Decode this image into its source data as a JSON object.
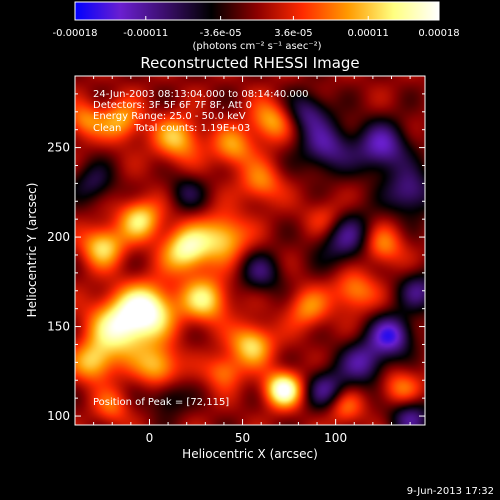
{
  "chart_data": {
    "type": "heatmap",
    "title": "Reconstructed RHESSI Image",
    "xlabel": "Heliocentric X (arcsec)",
    "ylabel": "Heliocentric Y (arcsec)",
    "xlim": [
      -40,
      148
    ],
    "ylim": [
      95,
      290
    ],
    "x_ticks": [
      0,
      50,
      100
    ],
    "y_ticks": [
      100,
      150,
      200,
      250
    ],
    "colorbar": {
      "min": -0.00018,
      "max": 0.00018,
      "ticks": [
        "-0.00018",
        "-0.00011",
        "-3.6e-05",
        "3.6e-05",
        "0.00011",
        "0.00018"
      ],
      "tick_values": [
        -0.00018,
        -0.00011,
        -3.6e-05,
        3.6e-05,
        0.00011,
        0.00018
      ],
      "unit_label": "(photons cm⁻² s⁻¹ asec⁻²)",
      "colormap": [
        "#0000ff",
        "#6a1fd0",
        "#3a0e6a",
        "#000000",
        "#8c0000",
        "#ff2a00",
        "#ff9a00",
        "#ffff80",
        "#ffffff"
      ]
    },
    "annotations": [
      "24-Jun-2003 08:13:04.000 to 08:14:40.000",
      "Detectors: 3F 5F 6F 7F 8F, Att 0",
      "Energy Range: 25.0 - 50.0 keV",
      "Clean    Total counts: 1.19E+03"
    ],
    "peak_label": "Position of Peak = [72,115]",
    "peak": [
      72,
      115
    ],
    "features": [
      {
        "x": 72,
        "y": 115,
        "v": 1.0,
        "s": 7
      },
      {
        "x": -15,
        "y": 150,
        "v": 0.9,
        "s": 12
      },
      {
        "x": 0,
        "y": 160,
        "v": 0.8,
        "s": 10
      },
      {
        "x": 20,
        "y": 193,
        "v": 0.85,
        "s": 9
      },
      {
        "x": -25,
        "y": 195,
        "v": 0.7,
        "s": 8
      },
      {
        "x": -5,
        "y": 210,
        "v": 0.7,
        "s": 8
      },
      {
        "x": 40,
        "y": 200,
        "v": 0.65,
        "s": 9
      },
      {
        "x": 55,
        "y": 140,
        "v": 0.7,
        "s": 8
      },
      {
        "x": 30,
        "y": 165,
        "v": 0.7,
        "s": 9
      },
      {
        "x": -30,
        "y": 130,
        "v": 0.6,
        "s": 8
      },
      {
        "x": 5,
        "y": 128,
        "v": 0.6,
        "s": 8
      },
      {
        "x": 15,
        "y": 255,
        "v": 0.6,
        "s": 9
      },
      {
        "x": -15,
        "y": 265,
        "v": 0.55,
        "s": 8
      },
      {
        "x": 45,
        "y": 250,
        "v": 0.5,
        "s": 8
      },
      {
        "x": 65,
        "y": 265,
        "v": 0.55,
        "s": 8
      },
      {
        "x": 60,
        "y": 230,
        "v": 0.45,
        "s": 8
      },
      {
        "x": 85,
        "y": 160,
        "v": 0.45,
        "s": 8
      },
      {
        "x": 110,
        "y": 170,
        "v": 0.5,
        "s": 8
      },
      {
        "x": 125,
        "y": 195,
        "v": 0.5,
        "s": 8
      },
      {
        "x": 95,
        "y": 210,
        "v": 0.4,
        "s": 8
      },
      {
        "x": 135,
        "y": 115,
        "v": 0.45,
        "s": 8
      },
      {
        "x": 105,
        "y": 105,
        "v": 0.4,
        "s": 7
      },
      {
        "x": -35,
        "y": 265,
        "v": 0.45,
        "s": 7
      },
      {
        "x": 40,
        "y": 125,
        "v": 0.45,
        "s": 7
      },
      {
        "x": -20,
        "y": 105,
        "v": 0.35,
        "s": 7
      },
      {
        "x": 95,
        "y": 250,
        "v": -0.6,
        "s": 10
      },
      {
        "x": 125,
        "y": 250,
        "v": -0.7,
        "s": 10
      },
      {
        "x": 105,
        "y": 200,
        "v": -0.6,
        "s": 11
      },
      {
        "x": 140,
        "y": 225,
        "v": -0.6,
        "s": 9
      },
      {
        "x": 130,
        "y": 145,
        "v": -0.8,
        "s": 8
      },
      {
        "x": 115,
        "y": 130,
        "v": -0.6,
        "s": 9
      },
      {
        "x": 95,
        "y": 115,
        "v": -0.55,
        "s": 8
      },
      {
        "x": 140,
        "y": 100,
        "v": -0.6,
        "s": 8
      },
      {
        "x": 85,
        "y": 270,
        "v": -0.5,
        "s": 8
      },
      {
        "x": 60,
        "y": 180,
        "v": -0.45,
        "s": 8
      },
      {
        "x": -30,
        "y": 230,
        "v": -0.4,
        "s": 8
      },
      {
        "x": 20,
        "y": 225,
        "v": -0.35,
        "s": 7
      },
      {
        "x": 10,
        "y": 110,
        "v": -0.35,
        "s": 7
      },
      {
        "x": 145,
        "y": 170,
        "v": -0.5,
        "s": 8
      }
    ]
  },
  "footer": {
    "timestamp": "9-Jun-2013 17:32"
  }
}
